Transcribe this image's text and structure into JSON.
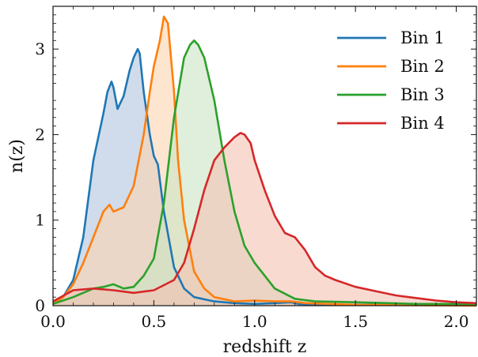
{
  "chart_data": {
    "type": "area",
    "xlabel": "redshift z",
    "ylabel": "n(z)",
    "xlim": [
      0.0,
      2.1
    ],
    "ylim": [
      0.0,
      3.5
    ],
    "xticks": [
      "0.0",
      "0.5",
      "1.0",
      "1.5",
      "2.0"
    ],
    "yticks": [
      "0",
      "1",
      "2",
      "3"
    ],
    "legend_position": "top-right",
    "grid": false,
    "series": [
      {
        "name": "Bin 1",
        "color": "#1f77b4",
        "fill": "#b0c4de",
        "x": [
          0.0,
          0.05,
          0.1,
          0.15,
          0.2,
          0.25,
          0.27,
          0.29,
          0.3,
          0.32,
          0.35,
          0.38,
          0.4,
          0.42,
          0.43,
          0.45,
          0.48,
          0.5,
          0.52,
          0.55,
          0.6,
          0.65,
          0.7,
          0.8,
          0.9,
          1.0,
          1.1,
          1.18,
          1.22,
          1.3,
          1.5,
          2.1
        ],
        "values": [
          0.02,
          0.1,
          0.3,
          0.8,
          1.7,
          2.25,
          2.5,
          2.62,
          2.55,
          2.3,
          2.45,
          2.75,
          2.9,
          3.0,
          2.95,
          2.5,
          2.0,
          1.75,
          1.65,
          1.1,
          0.45,
          0.2,
          0.1,
          0.05,
          0.03,
          0.02,
          0.03,
          0.04,
          0.02,
          0.01,
          0.01,
          0.01
        ]
      },
      {
        "name": "Bin 2",
        "color": "#ff7f0e",
        "fill": "#fcd3b0",
        "x": [
          0.0,
          0.05,
          0.1,
          0.15,
          0.2,
          0.25,
          0.28,
          0.3,
          0.32,
          0.35,
          0.4,
          0.45,
          0.48,
          0.5,
          0.53,
          0.55,
          0.57,
          0.6,
          0.62,
          0.65,
          0.7,
          0.75,
          0.8,
          0.9,
          1.0,
          1.1,
          1.18,
          1.25,
          1.5,
          2.1
        ],
        "values": [
          0.02,
          0.1,
          0.25,
          0.5,
          0.8,
          1.1,
          1.18,
          1.1,
          1.12,
          1.15,
          1.4,
          2.0,
          2.5,
          2.8,
          3.1,
          3.38,
          3.3,
          2.5,
          1.7,
          1.0,
          0.4,
          0.2,
          0.1,
          0.05,
          0.06,
          0.05,
          0.05,
          0.03,
          0.01,
          0.0
        ]
      },
      {
        "name": "Bin 3",
        "color": "#2ca02c",
        "fill": "#c9e5c3",
        "x": [
          0.0,
          0.1,
          0.2,
          0.25,
          0.3,
          0.35,
          0.4,
          0.45,
          0.5,
          0.55,
          0.6,
          0.65,
          0.68,
          0.7,
          0.72,
          0.75,
          0.8,
          0.85,
          0.9,
          0.95,
          1.0,
          1.05,
          1.1,
          1.2,
          1.3,
          1.5,
          1.8,
          2.1
        ],
        "values": [
          0.02,
          0.1,
          0.2,
          0.22,
          0.25,
          0.2,
          0.22,
          0.35,
          0.55,
          1.2,
          2.2,
          2.9,
          3.05,
          3.1,
          3.05,
          2.9,
          2.4,
          1.7,
          1.1,
          0.7,
          0.5,
          0.35,
          0.2,
          0.08,
          0.05,
          0.04,
          0.02,
          0.02
        ]
      },
      {
        "name": "Bin 4",
        "color": "#d62728",
        "fill": "#f3c1b3",
        "x": [
          0.0,
          0.1,
          0.2,
          0.3,
          0.4,
          0.5,
          0.6,
          0.65,
          0.7,
          0.75,
          0.8,
          0.85,
          0.9,
          0.93,
          0.95,
          0.98,
          1.0,
          1.05,
          1.1,
          1.15,
          1.2,
          1.25,
          1.3,
          1.35,
          1.4,
          1.5,
          1.6,
          1.7,
          1.8,
          1.9,
          2.0,
          2.1
        ],
        "values": [
          0.05,
          0.18,
          0.2,
          0.18,
          0.15,
          0.18,
          0.3,
          0.5,
          0.9,
          1.35,
          1.7,
          1.85,
          1.97,
          2.02,
          2.0,
          1.9,
          1.7,
          1.35,
          1.05,
          0.85,
          0.8,
          0.65,
          0.45,
          0.35,
          0.3,
          0.22,
          0.17,
          0.12,
          0.09,
          0.06,
          0.04,
          0.03
        ]
      }
    ]
  }
}
